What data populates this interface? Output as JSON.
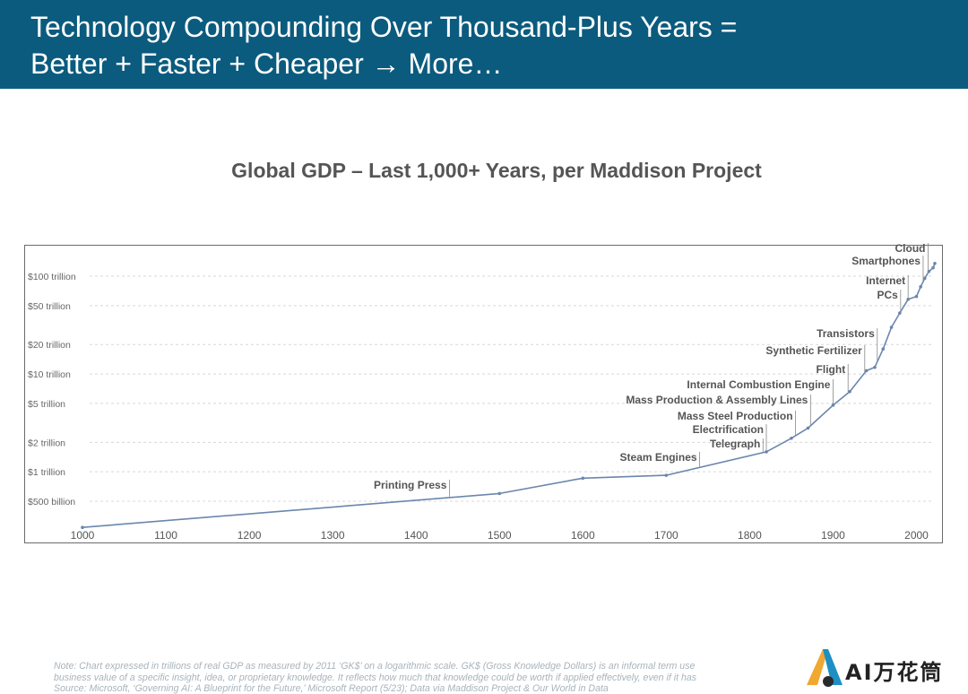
{
  "header": {
    "title_line1": "Technology Compounding Over Thousand-Plus Years =",
    "title_line2": "Better + Faster + Cheaper → More…"
  },
  "chart_data": {
    "type": "line",
    "title": "Global GDP – Last 1,000+ Years, per Maddison Project",
    "xlabel": "",
    "ylabel": "",
    "y_scale": "log",
    "xlim": [
      1000,
      2022
    ],
    "ylim": [
      250,
      180000
    ],
    "x_ticks": [
      1000,
      1100,
      1200,
      1300,
      1400,
      1500,
      1600,
      1700,
      1800,
      1900,
      2000
    ],
    "y_ticks": [
      {
        "value": 500,
        "label": "$500 billion"
      },
      {
        "value": 1000,
        "label": "$1 trillion"
      },
      {
        "value": 2000,
        "label": "$2 trillion"
      },
      {
        "value": 5000,
        "label": "$5 trillion"
      },
      {
        "value": 10000,
        "label": "$10 trillion"
      },
      {
        "value": 20000,
        "label": "$20 trillion"
      },
      {
        "value": 50000,
        "label": "$50 trillion"
      },
      {
        "value": 100000,
        "label": "$100 trillion"
      }
    ],
    "grid": "horizontal-dashed",
    "line_color": "#6b86ad",
    "series": [
      {
        "x": [
          1000,
          1500,
          1600,
          1700,
          1820,
          1850,
          1870,
          1900,
          1920,
          1940,
          1950,
          1960,
          1970,
          1980,
          1990,
          2000,
          2005,
          2010,
          2015,
          2020,
          2022
        ],
        "values": [
          270,
          600,
          860,
          920,
          1600,
          2200,
          2800,
          4800,
          6600,
          10800,
          11700,
          18000,
          30000,
          42000,
          58000,
          62000,
          78000,
          95000,
          112000,
          122000,
          135000
        ]
      }
    ],
    "annotations": [
      {
        "label": "Printing Press",
        "year": 1440
      },
      {
        "label": "Steam Engines",
        "year": 1740
      },
      {
        "label": "Telegraph",
        "year": 1816
      },
      {
        "label": "Electrification",
        "year": 1820
      },
      {
        "label": "Mass Steel Production",
        "year": 1855
      },
      {
        "label": "Mass Production & Assembly Lines",
        "year": 1873
      },
      {
        "label": "Internal Combustion Engine",
        "year": 1900
      },
      {
        "label": "Flight",
        "year": 1918
      },
      {
        "label": "Synthetic Fertilizer",
        "year": 1938
      },
      {
        "label": "Transistors",
        "year": 1953
      },
      {
        "label": "PCs",
        "year": 1981
      },
      {
        "label": "Internet",
        "year": 1990
      },
      {
        "label": "Smartphones",
        "year": 2008
      },
      {
        "label": "Cloud",
        "year": 2014
      }
    ]
  },
  "footnote": {
    "line1": "Note: Chart expressed in trillions of real GDP as measured by 2011 ‘GK$’ on a logarithmic scale. GK$ (Gross Knowledge Dollars) is an informal term use",
    "line2": "business value of a specific insight, idea, or proprietary knowledge. It reflects how much that knowledge could be worth if applied effectively, even if it has",
    "line3": "Source: Microsoft, ‘Governing AI: A Blueprint for the Future,’ Microsoft Report (5/23); Data via Maddison Project & Our World in Data"
  },
  "logo": {
    "text": "AI万花筒",
    "colors": [
      "#f0a830",
      "#1d8fc4"
    ]
  }
}
